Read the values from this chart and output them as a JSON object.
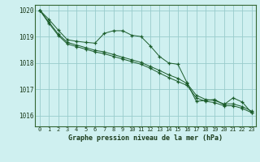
{
  "title": "Graphe pression niveau de la mer (hPa)",
  "background_color": "#cff0f0",
  "grid_color": "#99cccc",
  "line_color": "#1a5c2a",
  "xlim": [
    -0.5,
    23.5
  ],
  "ylim": [
    1015.6,
    1020.2
  ],
  "yticks": [
    1016,
    1017,
    1018,
    1019,
    1020
  ],
  "xticks": [
    0,
    1,
    2,
    3,
    4,
    5,
    6,
    7,
    8,
    9,
    10,
    11,
    12,
    13,
    14,
    15,
    16,
    17,
    18,
    19,
    20,
    21,
    22,
    23
  ],
  "series1": [
    [
      0,
      1020.0
    ],
    [
      1,
      1019.65
    ],
    [
      2,
      1019.25
    ],
    [
      3,
      1018.88
    ],
    [
      4,
      1018.82
    ],
    [
      5,
      1018.78
    ],
    [
      6,
      1018.75
    ],
    [
      7,
      1019.12
    ],
    [
      8,
      1019.22
    ],
    [
      9,
      1019.22
    ],
    [
      10,
      1019.05
    ],
    [
      11,
      1019.0
    ],
    [
      12,
      1018.65
    ],
    [
      13,
      1018.25
    ],
    [
      14,
      1018.0
    ],
    [
      15,
      1017.95
    ],
    [
      16,
      1017.25
    ],
    [
      17,
      1016.55
    ],
    [
      18,
      1016.58
    ],
    [
      19,
      1016.62
    ],
    [
      20,
      1016.42
    ],
    [
      21,
      1016.68
    ],
    [
      22,
      1016.52
    ],
    [
      23,
      1016.12
    ]
  ],
  "series2": [
    [
      0,
      1020.0
    ],
    [
      1,
      1019.55
    ],
    [
      2,
      1019.1
    ],
    [
      3,
      1018.78
    ],
    [
      4,
      1018.68
    ],
    [
      5,
      1018.58
    ],
    [
      6,
      1018.48
    ],
    [
      7,
      1018.42
    ],
    [
      8,
      1018.32
    ],
    [
      9,
      1018.22
    ],
    [
      10,
      1018.12
    ],
    [
      11,
      1018.02
    ],
    [
      12,
      1017.87
    ],
    [
      13,
      1017.72
    ],
    [
      14,
      1017.55
    ],
    [
      15,
      1017.42
    ],
    [
      16,
      1017.22
    ],
    [
      17,
      1016.78
    ],
    [
      18,
      1016.62
    ],
    [
      19,
      1016.58
    ],
    [
      20,
      1016.45
    ],
    [
      21,
      1016.45
    ],
    [
      22,
      1016.35
    ],
    [
      23,
      1016.18
    ]
  ],
  "series3": [
    [
      0,
      1020.0
    ],
    [
      1,
      1019.5
    ],
    [
      2,
      1019.05
    ],
    [
      3,
      1018.72
    ],
    [
      4,
      1018.62
    ],
    [
      5,
      1018.52
    ],
    [
      6,
      1018.42
    ],
    [
      7,
      1018.35
    ],
    [
      8,
      1018.25
    ],
    [
      9,
      1018.15
    ],
    [
      10,
      1018.05
    ],
    [
      11,
      1017.95
    ],
    [
      12,
      1017.8
    ],
    [
      13,
      1017.62
    ],
    [
      14,
      1017.45
    ],
    [
      15,
      1017.3
    ],
    [
      16,
      1017.15
    ],
    [
      17,
      1016.68
    ],
    [
      18,
      1016.55
    ],
    [
      19,
      1016.5
    ],
    [
      20,
      1016.38
    ],
    [
      21,
      1016.38
    ],
    [
      22,
      1016.28
    ],
    [
      23,
      1016.12
    ]
  ]
}
